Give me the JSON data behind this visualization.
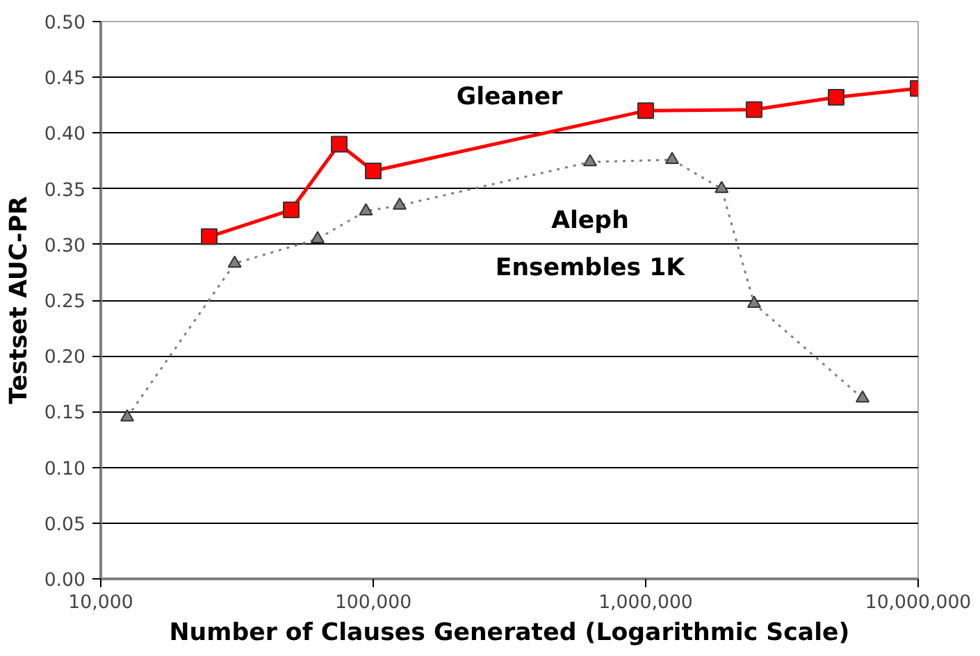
{
  "chart_data": {
    "type": "line",
    "xlabel": "Number of Clauses Generated (Logarithmic Scale)",
    "ylabel": "Testset AUC-PR",
    "log": "x",
    "grid": "y",
    "xlim": [
      10000,
      10000000
    ],
    "xticks": [
      {
        "value": 10000,
        "label": "10,000"
      },
      {
        "value": 100000,
        "label": "100,000"
      },
      {
        "value": 1000000,
        "label": "1,000,000"
      },
      {
        "value": 10000000,
        "label": "10,000,000"
      }
    ],
    "ylim": [
      0,
      0.5
    ],
    "yticks": [
      {
        "value": 0,
        "label": "0.00"
      },
      {
        "value": 0.05,
        "label": "0.05"
      },
      {
        "value": 0.1,
        "label": "0.10"
      },
      {
        "value": 0.15,
        "label": "0.15"
      },
      {
        "value": 0.2,
        "label": "0.20"
      },
      {
        "value": 0.25,
        "label": "0.25"
      },
      {
        "value": 0.3,
        "label": "0.30"
      },
      {
        "value": 0.35,
        "label": "0.35"
      },
      {
        "value": 0.4,
        "label": "0.40"
      },
      {
        "value": 0.45,
        "label": "0.45"
      },
      {
        "value": 0.5,
        "label": "0.50"
      }
    ],
    "series": [
      {
        "name": "Gleaner",
        "color": "#ff0000",
        "marker": "square",
        "line_style": "solid",
        "x": [
          25000,
          50000,
          75000,
          100000,
          1000000,
          2500000,
          5000000,
          10000000
        ],
        "values": [
          0.307,
          0.331,
          0.39,
          0.366,
          0.42,
          0.421,
          0.432,
          0.44
        ]
      },
      {
        "name": "Aleph\nEnsembles 1K",
        "color": "#808080",
        "marker": "triangle",
        "line_style": "dotted",
        "x": [
          12500,
          31000,
          62500,
          94000,
          125000,
          625000,
          1250000,
          1900000,
          2500000,
          6250000
        ],
        "values": [
          0.145,
          0.283,
          0.305,
          0.33,
          0.335,
          0.374,
          0.376,
          0.35,
          0.247,
          0.162
        ]
      }
    ]
  }
}
